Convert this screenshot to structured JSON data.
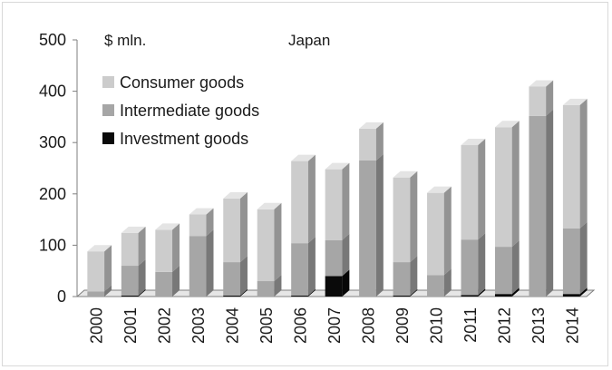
{
  "chart_data": {
    "type": "bar",
    "stacked": true,
    "three_d": true,
    "unit_label": "$ mln.",
    "title": "Japan",
    "categories": [
      "2000",
      "2001",
      "2002",
      "2003",
      "2004",
      "2005",
      "2006",
      "2007",
      "2008",
      "2009",
      "2010",
      "2011",
      "2012",
      "2013",
      "2014"
    ],
    "series": [
      {
        "name": "Investment goods",
        "color": "#0a0a0a",
        "values": [
          0,
          2,
          0,
          0,
          2,
          0,
          2,
          40,
          0,
          2,
          0,
          3,
          5,
          0,
          5
        ]
      },
      {
        "name": "Intermediate goods",
        "color": "#a6a6a6",
        "values": [
          10,
          58,
          48,
          118,
          65,
          30,
          102,
          70,
          265,
          65,
          42,
          108,
          92,
          352,
          128
        ]
      },
      {
        "name": "Consumer goods",
        "color": "#cccccc",
        "values": [
          78,
          64,
          82,
          42,
          124,
          140,
          160,
          138,
          62,
          165,
          160,
          184,
          233,
          57,
          240
        ]
      }
    ],
    "yaxis": {
      "min": 0,
      "max": 500,
      "ticks": [
        0,
        100,
        200,
        300,
        400,
        500
      ]
    },
    "legend": {
      "placement": "top-left",
      "order": [
        "Consumer goods",
        "Intermediate goods",
        "Investment goods"
      ]
    },
    "grid": false
  }
}
